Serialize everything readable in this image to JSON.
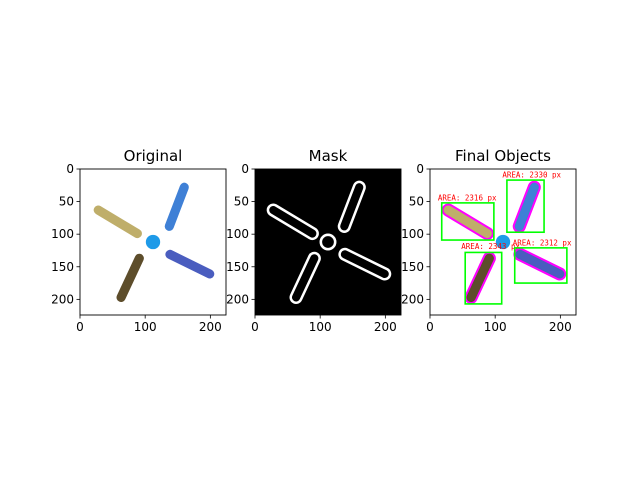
{
  "chart_data": {
    "type": "image_panels",
    "axis": {
      "xlim": [
        0,
        224
      ],
      "ylim": [
        224,
        0
      ],
      "xticks": [
        0,
        100,
        200
      ],
      "yticks": [
        0,
        50,
        100,
        150,
        200
      ]
    },
    "panels": [
      {
        "title": "Original",
        "background": "#ffffff",
        "objects": [
          {
            "shape": "capsule",
            "from": [
              160,
              28
            ],
            "to": [
              137,
              88
            ],
            "width": 14,
            "color": "#3f80d6"
          },
          {
            "shape": "capsule",
            "from": [
              28,
              63
            ],
            "to": [
              88,
              99
            ],
            "width": 14,
            "color": "#bfae6a"
          },
          {
            "shape": "capsule",
            "from": [
              91,
              137
            ],
            "to": [
              63,
              197
            ],
            "width": 14,
            "color": "#5d4d2b"
          },
          {
            "shape": "capsule",
            "from": [
              138,
              131
            ],
            "to": [
              199,
              161
            ],
            "width": 14,
            "color": "#4a5dbf"
          },
          {
            "shape": "circle",
            "center": [
              112,
              112
            ],
            "radius": 11,
            "color": "#1e9ae8"
          }
        ]
      },
      {
        "title": "Mask",
        "background": "#000000",
        "objects": [
          {
            "shape": "capsule",
            "from": [
              160,
              28
            ],
            "to": [
              137,
              88
            ],
            "width": 14,
            "color": "#ffffff",
            "outline_only": true
          },
          {
            "shape": "capsule",
            "from": [
              28,
              63
            ],
            "to": [
              88,
              99
            ],
            "width": 14,
            "color": "#ffffff",
            "outline_only": true
          },
          {
            "shape": "capsule",
            "from": [
              91,
              137
            ],
            "to": [
              63,
              197
            ],
            "width": 14,
            "color": "#ffffff",
            "outline_only": true
          },
          {
            "shape": "capsule",
            "from": [
              138,
              131
            ],
            "to": [
              199,
              161
            ],
            "width": 14,
            "color": "#ffffff",
            "outline_only": true
          },
          {
            "shape": "circle",
            "center": [
              112,
              112
            ],
            "radius": 11,
            "color": "#ffffff",
            "outline_only": true
          }
        ]
      },
      {
        "title": "Final Objects",
        "background": "#ffffff",
        "objects": [
          {
            "shape": "capsule",
            "from": [
              160,
              28
            ],
            "to": [
              137,
              88
            ],
            "width": 14,
            "color": "#3f80d6",
            "contour": "#ff00ff"
          },
          {
            "shape": "capsule",
            "from": [
              28,
              63
            ],
            "to": [
              88,
              99
            ],
            "width": 14,
            "color": "#bfae6a",
            "contour": "#ff00ff"
          },
          {
            "shape": "capsule",
            "from": [
              91,
              137
            ],
            "to": [
              63,
              197
            ],
            "width": 14,
            "color": "#5d4d2b",
            "contour": "#ff00ff"
          },
          {
            "shape": "capsule",
            "from": [
              138,
              131
            ],
            "to": [
              199,
              161
            ],
            "width": 14,
            "color": "#4a5dbf",
            "contour": "#ff00ff"
          },
          {
            "shape": "circle",
            "center": [
              112,
              112
            ],
            "radius": 11,
            "color": "#1e9ae8"
          }
        ],
        "boxes": [
          {
            "x0": 118,
            "y0": 17,
            "x1": 175,
            "y1": 97,
            "label": "AREA: 2330 px",
            "label_at": [
              111,
              13
            ]
          },
          {
            "x0": 18,
            "y0": 52,
            "x1": 98,
            "y1": 109,
            "label": "AREA: 2316 px",
            "label_at": [
              12,
              48
            ]
          },
          {
            "x0": 54,
            "y0": 128,
            "x1": 110,
            "y1": 207,
            "label": "AREA: 2343 px",
            "label_at": [
              48,
              123
            ]
          },
          {
            "x0": 130,
            "y0": 121,
            "x1": 210,
            "y1": 175,
            "label": "AREA: 2312 px",
            "label_at": [
              127,
              117
            ]
          }
        ],
        "box_color": "#00ff00"
      }
    ]
  }
}
